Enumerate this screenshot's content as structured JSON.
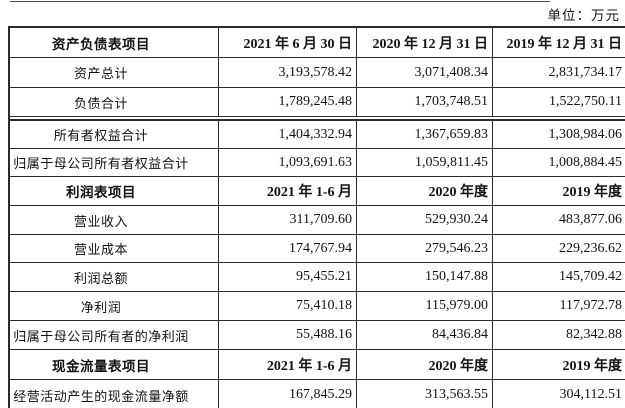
{
  "unit_label": "单位：万元",
  "colors": {
    "border": "#2b2b2b",
    "text": "#121212",
    "background": "#ffffff"
  },
  "table": {
    "sections": [
      {
        "header": {
          "item": "资产负债表项目",
          "cols": [
            "2021 年 6 月 30 日",
            "2020 年 12 月 31 日",
            "2019 年 12 月 31 日"
          ]
        },
        "rows": [
          {
            "label": "资产总计",
            "values": [
              "3,193,578.42",
              "3,071,408.34",
              "2,831,734.17"
            ]
          },
          {
            "label": "负债合计",
            "values": [
              "1,789,245.48",
              "1,703,748.51",
              "1,522,750.11"
            ],
            "divider_after": true
          },
          {
            "label": "所有者权益合计",
            "values": [
              "1,404,332.94",
              "1,367,659.83",
              "1,308,984.06"
            ]
          },
          {
            "label": "归属于母公司所有者权益合计",
            "values": [
              "1,093,691.63",
              "1,059,811.45",
              "1,008,884.45"
            ]
          }
        ]
      },
      {
        "header": {
          "item": "利润表项目",
          "cols": [
            "2021 年 1-6 月",
            "2020 年度",
            "2019 年度"
          ]
        },
        "rows": [
          {
            "label": "营业收入",
            "values": [
              "311,709.60",
              "529,930.24",
              "483,877.06"
            ]
          },
          {
            "label": "营业成本",
            "values": [
              "174,767.94",
              "279,546.23",
              "229,236.62"
            ]
          },
          {
            "label": "利润总额",
            "values": [
              "95,455.21",
              "150,147.88",
              "145,709.42"
            ]
          },
          {
            "label": "净利润",
            "values": [
              "75,410.18",
              "115,979.00",
              "117,972.78"
            ]
          },
          {
            "label": "归属于母公司所有者的净利润",
            "values": [
              "55,488.16",
              "84,436.84",
              "82,342.88"
            ]
          }
        ]
      },
      {
        "header": {
          "item": "现金流量表项目",
          "cols": [
            "2021 年 1-6 月",
            "2020 年度",
            "2019 年度"
          ]
        },
        "rows": [
          {
            "label": "经营活动产生的现金流量净额",
            "values": [
              "167,845.29",
              "313,563.55",
              "304,112.51"
            ]
          }
        ]
      }
    ]
  }
}
